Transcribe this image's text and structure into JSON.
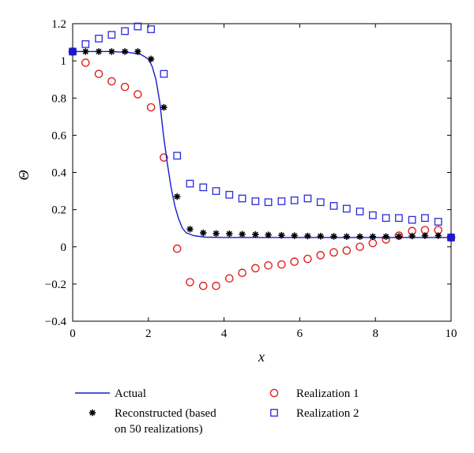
{
  "chart_data": {
    "type": "line",
    "title": "",
    "xlabel": "x",
    "ylabel": "Θ",
    "xlim": [
      0,
      10
    ],
    "ylim": [
      -0.4,
      1.2
    ],
    "xticks": [
      0,
      2,
      4,
      6,
      8,
      10
    ],
    "yticks": [
      -0.4,
      -0.2,
      0,
      0.2,
      0.4,
      0.6,
      0.8,
      1,
      1.2
    ],
    "xtick_labels": [
      "0",
      "2",
      "4",
      "6",
      "8",
      "10"
    ],
    "ytick_labels": [
      "−0.4",
      "−0.2",
      "0",
      "0.2",
      "0.4",
      "0.6",
      "0.8",
      "1",
      "1.2"
    ],
    "grid": false,
    "legend_position": "below",
    "series": [
      {
        "name": "Actual",
        "kind": "line",
        "color": "#1a1acc",
        "x": [
          0,
          0.5,
          1.0,
          1.5,
          1.8,
          2.0,
          2.1,
          2.2,
          2.3,
          2.4,
          2.5,
          2.6,
          2.7,
          2.8,
          2.9,
          3.0,
          3.2,
          3.5,
          4.0,
          5.0,
          6.0,
          7.0,
          8.0,
          9.0,
          10.0
        ],
        "y": [
          1.05,
          1.05,
          1.05,
          1.045,
          1.035,
          1.01,
          0.97,
          0.9,
          0.78,
          0.6,
          0.45,
          0.32,
          0.22,
          0.15,
          0.1,
          0.075,
          0.06,
          0.052,
          0.05,
          0.05,
          0.05,
          0.05,
          0.05,
          0.05,
          0.05
        ]
      },
      {
        "name": "Reconstructed (based on 50 realizations)",
        "kind": "asterisk",
        "color": "#000000",
        "x": [
          0,
          0.34,
          0.69,
          1.03,
          1.38,
          1.72,
          2.07,
          2.41,
          2.76,
          3.1,
          3.45,
          3.79,
          4.14,
          4.48,
          4.83,
          5.17,
          5.52,
          5.86,
          6.21,
          6.55,
          6.9,
          7.24,
          7.59,
          7.93,
          8.28,
          8.62,
          8.97,
          9.31,
          9.66,
          10.0
        ],
        "y": [
          1.05,
          1.05,
          1.05,
          1.05,
          1.05,
          1.05,
          1.01,
          0.75,
          0.27,
          0.095,
          0.075,
          0.072,
          0.07,
          0.068,
          0.066,
          0.064,
          0.062,
          0.06,
          0.058,
          0.057,
          0.056,
          0.055,
          0.055,
          0.055,
          0.055,
          0.056,
          0.058,
          0.06,
          0.06,
          0.055
        ]
      },
      {
        "name": "Realization 1",
        "kind": "circle",
        "color": "#e02020",
        "x": [
          0,
          0.34,
          0.69,
          1.03,
          1.38,
          1.72,
          2.07,
          2.41,
          2.76,
          3.1,
          3.45,
          3.79,
          4.14,
          4.48,
          4.83,
          5.17,
          5.52,
          5.86,
          6.21,
          6.55,
          6.9,
          7.24,
          7.59,
          7.93,
          8.28,
          8.62,
          8.97,
          9.31,
          9.66,
          10.0
        ],
        "y": [
          1.05,
          0.99,
          0.93,
          0.89,
          0.86,
          0.82,
          0.75,
          0.48,
          -0.01,
          -0.19,
          -0.21,
          -0.21,
          -0.17,
          -0.14,
          -0.115,
          -0.1,
          -0.095,
          -0.08,
          -0.065,
          -0.045,
          -0.03,
          -0.02,
          0.0,
          0.02,
          0.04,
          0.06,
          0.085,
          0.09,
          0.09,
          0.05
        ]
      },
      {
        "name": "Realization 2",
        "kind": "square",
        "color": "#2a2ad8",
        "x": [
          0,
          0.34,
          0.69,
          1.03,
          1.38,
          1.72,
          2.07,
          2.41,
          2.76,
          3.1,
          3.45,
          3.79,
          4.14,
          4.48,
          4.83,
          5.17,
          5.52,
          5.86,
          6.21,
          6.55,
          6.9,
          7.24,
          7.59,
          7.93,
          8.28,
          8.62,
          8.97,
          9.31,
          9.66,
          10.0
        ],
        "y": [
          1.05,
          1.09,
          1.12,
          1.14,
          1.16,
          1.185,
          1.17,
          0.93,
          0.49,
          0.34,
          0.32,
          0.3,
          0.28,
          0.26,
          0.245,
          0.24,
          0.245,
          0.25,
          0.26,
          0.24,
          0.22,
          0.205,
          0.19,
          0.17,
          0.155,
          0.155,
          0.145,
          0.155,
          0.135,
          0.05
        ]
      }
    ],
    "legend": [
      {
        "name": "Actual",
        "kind": "line",
        "color": "#1a1acc",
        "lines": [
          "Actual"
        ]
      },
      {
        "name": "Reconstructed (based on 50 realizations)",
        "kind": "asterisk",
        "color": "#000000",
        "lines": [
          "Reconstructed (based",
          "on 50 realizations)"
        ]
      },
      {
        "name": "Realization 1",
        "kind": "circle",
        "color": "#e02020",
        "lines": [
          "Realization 1"
        ]
      },
      {
        "name": "Realization 2",
        "kind": "square",
        "color": "#2a2ad8",
        "lines": [
          "Realization 2"
        ]
      }
    ],
    "endpoint_markers": {
      "color": "#1a1acc",
      "points": [
        [
          0,
          1.05
        ],
        [
          10,
          0.05
        ]
      ]
    }
  }
}
